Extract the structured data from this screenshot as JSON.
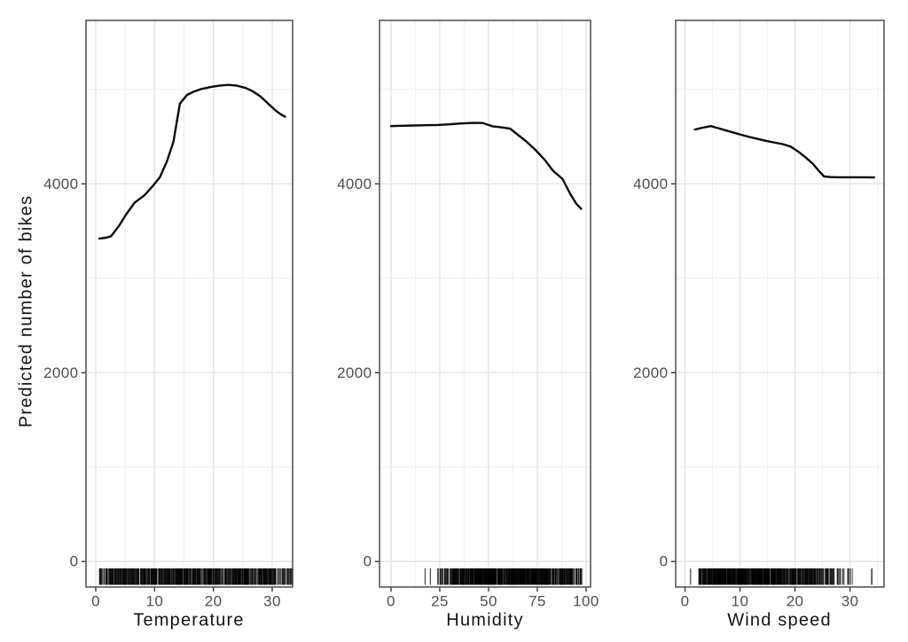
{
  "chart_data": {
    "type": "line",
    "title": "",
    "ylabel": "Predicted number of bikes",
    "ylim": [
      -270,
      5731
    ],
    "y_ticks": {
      "major": [
        0,
        2000,
        4000
      ],
      "minor": [
        1000,
        3000,
        5000
      ],
      "labels": [
        "0",
        "2000",
        "4000"
      ]
    },
    "grid": true,
    "legend": "none",
    "panels": [
      {
        "xlabel": "Temperature",
        "xlim": [
          -1.66,
          33.47
        ],
        "x_ticks": {
          "major": [
            0,
            10,
            20,
            30
          ],
          "minor": [
            5,
            15,
            25
          ],
          "labels": [
            "0",
            "10",
            "20",
            "30"
          ]
        },
        "series": {
          "name": "pdp-temperature",
          "x": [
            0.6,
            1.8,
            2.6,
            4.0,
            5.2,
            6.6,
            8.3,
            9.8,
            10.9,
            12.1,
            13.2,
            14.3,
            15.5,
            16.6,
            18.0,
            19.5,
            21.0,
            22.5,
            24.0,
            25.5,
            26.7,
            28.0,
            29.3,
            30.6,
            31.5,
            32.2
          ],
          "y": [
            3420,
            3430,
            3445,
            3560,
            3680,
            3800,
            3880,
            3985,
            4070,
            4240,
            4445,
            4850,
            4940,
            4975,
            5005,
            5025,
            5040,
            5048,
            5040,
            5015,
            4980,
            4925,
            4850,
            4775,
            4735,
            4710
          ]
        },
        "rug": {
          "side": "bottom",
          "segments": [
            {
              "from": 0.5,
              "to": 3,
              "count": 50
            },
            {
              "from": 3,
              "to": 8,
              "count": 120
            },
            {
              "from": 8,
              "to": 27,
              "count": 500
            },
            {
              "from": 27,
              "to": 30.5,
              "count": 90
            },
            {
              "from": 30.5,
              "to": 33.5,
              "count": 40
            }
          ]
        }
      },
      {
        "xlabel": "Humidity",
        "xlim": [
          -5.9,
          102.3
        ],
        "x_ticks": {
          "major": [
            0,
            25,
            50,
            75,
            100
          ],
          "minor": [
            12.5,
            37.5,
            62.5,
            87.5
          ],
          "labels": [
            "0",
            "25",
            "50",
            "75",
            "100"
          ]
        },
        "series": {
          "name": "pdp-humidity",
          "x": [
            0,
            6,
            12,
            18,
            24,
            30,
            36,
            42,
            47,
            52,
            56,
            61,
            65,
            69,
            74,
            79,
            83,
            88,
            92,
            95,
            97.5
          ],
          "y": [
            4612,
            4615,
            4618,
            4621,
            4624,
            4630,
            4640,
            4645,
            4644,
            4610,
            4600,
            4585,
            4520,
            4455,
            4360,
            4250,
            4140,
            4050,
            3890,
            3790,
            3735
          ]
        },
        "rug": {
          "side": "bottom",
          "segments": [
            {
              "from": 17.3,
              "to": 17.8,
              "count": 2
            },
            {
              "from": 20,
              "to": 20.5,
              "count": 2
            },
            {
              "from": 24,
              "to": 32,
              "count": 45
            },
            {
              "from": 32,
              "to": 42,
              "count": 110
            },
            {
              "from": 42,
              "to": 80,
              "count": 520
            },
            {
              "from": 80,
              "to": 93,
              "count": 120
            },
            {
              "from": 93,
              "to": 99,
              "count": 25
            }
          ]
        }
      },
      {
        "xlabel": "Wind speed",
        "xlim": [
          -1.7,
          36.2
        ],
        "x_ticks": {
          "major": [
            0,
            10,
            20,
            30
          ],
          "minor": [
            5,
            15,
            25,
            35
          ],
          "labels": [
            "0",
            "10",
            "20",
            "30"
          ]
        },
        "series": {
          "name": "pdp-wind-speed",
          "x": [
            1.8,
            3.2,
            4.7,
            6.0,
            7.5,
            9.0,
            10.5,
            12.0,
            13.5,
            15.0,
            16.5,
            17.8,
            19.2,
            20.5,
            21.9,
            23.2,
            24.3,
            25.3,
            26.5,
            28.0,
            30.0,
            32.0,
            34.4
          ],
          "y": [
            4575,
            4595,
            4612,
            4590,
            4565,
            4540,
            4515,
            4492,
            4472,
            4452,
            4435,
            4420,
            4395,
            4345,
            4282,
            4215,
            4140,
            4078,
            4072,
            4070,
            4070,
            4070,
            4068
          ]
        },
        "rug": {
          "side": "bottom",
          "segments": [
            {
              "from": 0.9,
              "to": 1.2,
              "count": 2
            },
            {
              "from": 2.5,
              "to": 6,
              "count": 110
            },
            {
              "from": 6,
              "to": 17,
              "count": 420
            },
            {
              "from": 17,
              "to": 21,
              "count": 110
            },
            {
              "from": 21,
              "to": 26,
              "count": 110
            },
            {
              "from": 26,
              "to": 29,
              "count": 30
            },
            {
              "from": 29.5,
              "to": 30.5,
              "count": 8
            },
            {
              "from": 33.8,
              "to": 34.2,
              "count": 3
            }
          ]
        }
      }
    ],
    "style": {
      "background": "#ffffff",
      "line_color": "#0a0a0a",
      "grid_major_color": "#e3e3e3",
      "grid_minor_color": "#efefef",
      "panel_border_color": "#3f3f3f",
      "tick_color": "#333333",
      "tick_label_color": "#4d4d4d",
      "axis_title_color": "#141414",
      "rug_color": "#000000"
    }
  }
}
